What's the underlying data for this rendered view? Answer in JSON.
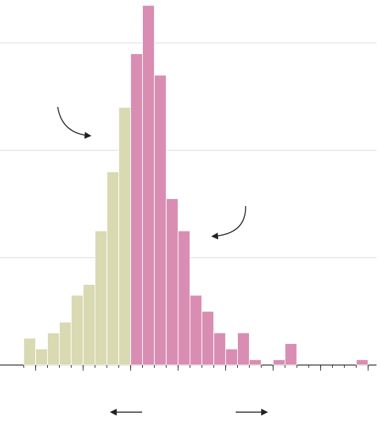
{
  "chart_data": {
    "type": "histogram",
    "bins": [
      0,
      1,
      2,
      3,
      4,
      5,
      6,
      7,
      8,
      9,
      10,
      11,
      12,
      13,
      14,
      15,
      16,
      17,
      18,
      19,
      20,
      21,
      22,
      23,
      24,
      25,
      26,
      27,
      28,
      29
    ],
    "values": [
      2.5,
      1.5,
      3,
      4,
      6.5,
      7.5,
      12.5,
      18,
      24,
      29,
      33.5,
      27,
      15.5,
      12.5,
      6.5,
      5,
      3,
      1.5,
      3,
      0.5,
      0,
      0.5,
      2,
      0,
      0,
      0,
      0,
      0,
      0.5
    ],
    "colors": [
      "#d9d9b2",
      "#d9d9b2",
      "#d9d9b2",
      "#d9d9b2",
      "#d9d9b2",
      "#d9d9b2",
      "#d9d9b2",
      "#d9d9b2",
      "#d9d9b2",
      "#d98db2",
      "#d98db2",
      "#d98db2",
      "#d98db2",
      "#d98db2",
      "#d98db2",
      "#d98db2",
      "#d98db2",
      "#d98db2",
      "#d98db2",
      "#d98db2",
      "#d98db2",
      "#d98db2",
      "#d98db2",
      "#d98db2",
      "#d98db2",
      "#d98db2",
      "#d98db2",
      "#d98db2",
      "#d98db2"
    ],
    "xlim": [
      -2,
      30
    ],
    "xticks": [
      1,
      5,
      9,
      13,
      17,
      21,
      25,
      29
    ],
    "ylim": [
      0,
      34
    ],
    "yticks": [
      0,
      10,
      20,
      30
    ],
    "grid": true
  }
}
